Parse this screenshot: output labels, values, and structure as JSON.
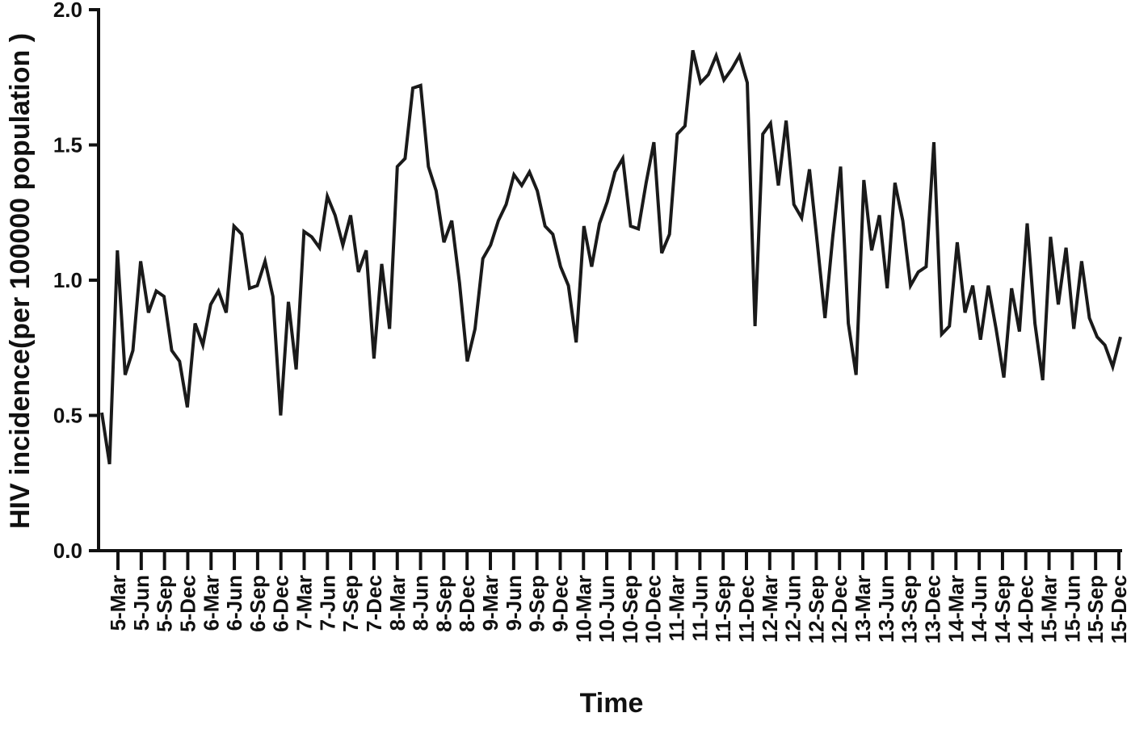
{
  "chart_data": {
    "type": "line",
    "title": "",
    "xlabel": "Time",
    "ylabel": "HIV incidence(per 100000 population )",
    "ylim": [
      0,
      2.0
    ],
    "y_ticks": [
      "0.0",
      "0.5",
      "1.0",
      "1.5",
      "2.0"
    ],
    "grid": false,
    "legend": "none",
    "line_color": "#1a1a1a",
    "x_tick_labels": [
      "5-Mar",
      "5-Jun",
      "5-Sep",
      "5-Dec",
      "6-Mar",
      "6-Jun",
      "6-Sep",
      "6-Dec",
      "7-Mar",
      "7-Jun",
      "7-Sep",
      "7-Dec",
      "8-Mar",
      "8-Jun",
      "8-Sep",
      "8-Dec",
      "9-Mar",
      "9-Jun",
      "9-Sep",
      "9-Dec",
      "10-Mar",
      "10-Jun",
      "10-Sep",
      "10-Dec",
      "11-Mar",
      "11-Jun",
      "11-Sep",
      "11-Dec",
      "12-Mar",
      "12-Jun",
      "12-Sep",
      "12-Dec",
      "13-Mar",
      "13-Jun",
      "13-Sep",
      "13-Dec",
      "14-Mar",
      "14-Jun",
      "14-Sep",
      "14-Dec",
      "15-Mar",
      "15-Jun",
      "15-Sep",
      "15-Dec"
    ],
    "series": [
      {
        "values": [
          0.51,
          0.32,
          1.11,
          0.65,
          0.74,
          1.07,
          0.88,
          0.96,
          0.94,
          0.74,
          0.7,
          0.53,
          0.84,
          0.76,
          0.91,
          0.96,
          0.88,
          1.2,
          1.17,
          0.97,
          0.98,
          1.07,
          0.94,
          0.5,
          0.92,
          0.67,
          1.18,
          1.16,
          1.12,
          1.31,
          1.24,
          1.13,
          1.24,
          1.03,
          1.11,
          0.71,
          1.06,
          0.82,
          1.42,
          1.45,
          1.71,
          1.72,
          1.42,
          1.33,
          1.14,
          1.22,
          0.99,
          0.7,
          0.82,
          1.08,
          1.13,
          1.22,
          1.28,
          1.39,
          1.35,
          1.4,
          1.33,
          1.2,
          1.17,
          1.05,
          0.98,
          0.77,
          1.2,
          1.05,
          1.21,
          1.29,
          1.4,
          1.45,
          1.2,
          1.19,
          1.36,
          1.51,
          1.1,
          1.17,
          1.54,
          1.57,
          1.85,
          1.73,
          1.76,
          1.83,
          1.74,
          1.78,
          1.83,
          1.73,
          0.83,
          1.54,
          1.58,
          1.35,
          1.59,
          1.28,
          1.23,
          1.41,
          1.14,
          0.86,
          1.16,
          1.42,
          0.84,
          0.65,
          1.37,
          1.11,
          1.24,
          0.97,
          1.36,
          1.22,
          0.98,
          1.03,
          1.05,
          1.51,
          0.8,
          0.83,
          1.14,
          0.88,
          0.98,
          0.78,
          0.98,
          0.82,
          0.64,
          0.97,
          0.81,
          1.21,
          0.84,
          0.63,
          1.16,
          0.91,
          1.12,
          0.82,
          1.07,
          0.86,
          0.79,
          0.76,
          0.68,
          0.79
        ]
      }
    ]
  }
}
